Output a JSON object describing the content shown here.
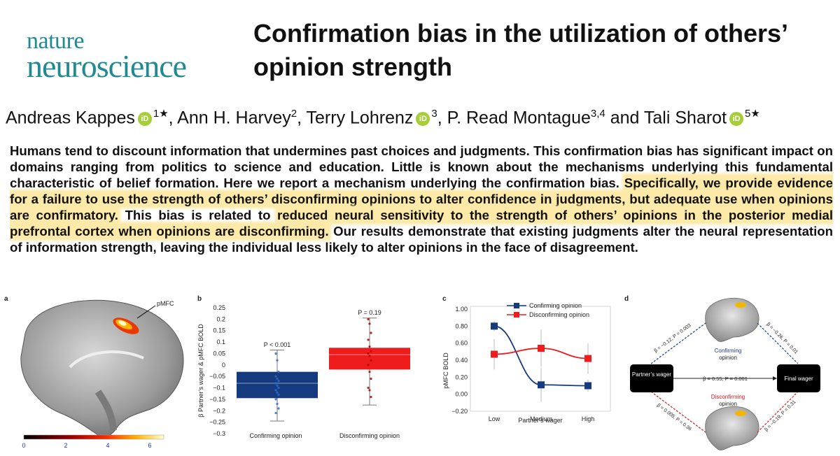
{
  "journal": {
    "line1": "nature",
    "line2": "neuroscience",
    "color": "#1f8a92"
  },
  "title": "Confirmation bias in the utilization of others’ opinion strength",
  "authors": [
    {
      "name": "Andreas Kappes",
      "orcid": true,
      "aff": "1★"
    },
    {
      "name": "Ann H. Harvey",
      "orcid": false,
      "aff": "2"
    },
    {
      "name": "Terry Lohrenz",
      "orcid": true,
      "aff": "3"
    },
    {
      "name": "P. Read Montague",
      "orcid": false,
      "aff": "3,4"
    },
    {
      "name": "Tali Sharot",
      "orcid": true,
      "aff": "5★"
    }
  ],
  "author_separators": [
    ", ",
    ", ",
    ", ",
    " and "
  ],
  "orcid_label": "iD",
  "abstract": {
    "part1": "Humans tend to discount information that undermines past choices and judgments. This confirmation bias has significant impact on domains ranging from politics to science and education. Little is known about the mechanisms underlying this fun­damental characteristic of belief formation. Here we report a mechanism underlying the confirmation bias. ",
    "hl1": "Specifically, we pro­vide evidence for a failure to use the strength of others’ disconfirming opinions to alter confidence in judgments, but adequate use when opinions are confirmatory.",
    "part2": " This bias is related to ",
    "hl2": "reduced neural sensitivity to the strength of others’ opinions in the posterior medial prefrontal cortex when opinions are disconfirming.",
    "part3": " Our results demonstrate that existing judgments alter the neural representation of information strength, leaving the individual less likely to alter opinions in the face of disagreement.",
    "highlight_color": "#fdeaa8"
  },
  "figure": {
    "a": {
      "label": "a",
      "region_label": "pMFC",
      "colorbar_ticks": [
        "0",
        "2",
        "4",
        "6"
      ]
    },
    "b": {
      "label": "b",
      "ylabel": "β Partner’s wager & pMFC BOLD",
      "y_ticks": [
        "0.25",
        "0.2",
        "0.15",
        "0.1",
        "0.05",
        "0",
        "−0.05",
        "−0.1",
        "−0.15",
        "−0.2",
        "−0.25",
        "−0.3"
      ],
      "annotations": [
        "P < 0.001",
        "P = 0.19"
      ],
      "categories": [
        "Confirming opinion",
        "Disconfirming opinion"
      ],
      "colors": [
        "#163a7e",
        "#ee1c1c"
      ]
    },
    "c": {
      "label": "c",
      "ylabel": "pMFC BOLD",
      "xlabel": "Partner’s wager",
      "legend": [
        "Confirming opinion",
        "Disconfirming opinion"
      ]
    },
    "d": {
      "label": "d",
      "partner_box": "Partner’s wager",
      "final_box": "Final wager",
      "confirming_label": "Confirming",
      "disconfirming_label": "Disconfirming",
      "opinion_word": "opinion",
      "direct_path": "β = 0.55, P = 0.001",
      "path_top_left": "β = −0.12, P = 0.003",
      "path_top_right": "β = −0.26, P = 0.01",
      "path_bottom_left": "β = 0.005, P = 0.36",
      "path_bottom_right": "β = −0.19, P = 0.31"
    }
  },
  "chart_data": [
    {
      "type": "bar",
      "panel": "b",
      "ylabel": "β Partner’s wager & pMFC BOLD",
      "ylim": [
        -0.3,
        0.25
      ],
      "categories": [
        "Confirming opinion",
        "Disconfirming opinion"
      ],
      "box_mean": [
        -0.08,
        0.045
      ],
      "box_q1": [
        -0.145,
        -0.02
      ],
      "box_q3": [
        -0.03,
        0.075
      ],
      "whisker_low": [
        -0.245,
        -0.175
      ],
      "whisker_high": [
        0.065,
        0.205
      ],
      "points": [
        [
          0.05,
          0.02,
          -0.03,
          -0.05,
          -0.06,
          -0.07,
          -0.08,
          -0.09,
          -0.1,
          -0.11,
          -0.12,
          -0.13,
          -0.15,
          -0.17,
          -0.19,
          -0.21
        ],
        [
          0.2,
          0.18,
          0.14,
          0.11,
          0.08,
          0.06,
          0.05,
          0.04,
          0.02,
          0.0,
          -0.03,
          -0.06,
          -0.1,
          -0.11,
          -0.14
        ]
      ],
      "annotations": [
        "P < 0.001",
        "P = 0.19"
      ]
    },
    {
      "type": "line",
      "panel": "c",
      "categories": [
        "Low",
        "Medium",
        "High"
      ],
      "xlabel": "Partner’s wager",
      "ylabel": "pMFC BOLD",
      "ylim": [
        -0.2,
        1.0
      ],
      "y_ticks": [
        "1.00",
        "0.80",
        "0.60",
        "0.40",
        "0.20",
        "0.00",
        "−0.20"
      ],
      "series": [
        {
          "name": "Confirming opinion",
          "values": [
            0.8,
            0.11,
            0.1
          ],
          "err": [
            0.06,
            0.2,
            0.07
          ],
          "color": "#163a7e"
        },
        {
          "name": "Disconfirming opinion",
          "values": [
            0.47,
            0.54,
            0.42
          ],
          "err": [
            0.18,
            0.22,
            0.18
          ],
          "color": "#ee1c1c"
        }
      ]
    }
  ]
}
